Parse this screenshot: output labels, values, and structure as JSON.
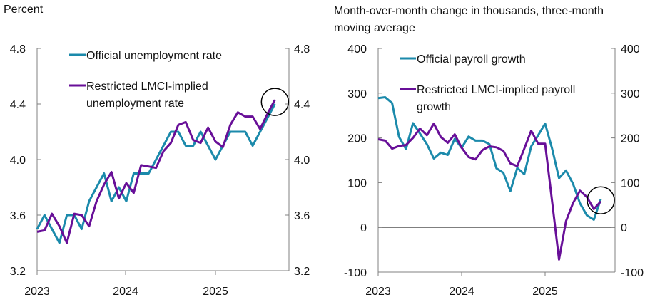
{
  "colors": {
    "official": "#1b8aab",
    "lmci": "#680f98",
    "axis": "#808080"
  },
  "chart_data": [
    {
      "type": "line",
      "ylabel": "Percent",
      "ylim": [
        3.2,
        4.8
      ],
      "yticks": [
        "3.2",
        "3.6",
        "4.0",
        "4.4",
        "4.8"
      ],
      "ytick_values": [
        3.2,
        3.6,
        4.0,
        4.4,
        4.8
      ],
      "xticks": [
        "2023",
        "2024",
        "2025"
      ],
      "x_start": "2023-01",
      "x_frequency": "monthly",
      "grid": false,
      "legend": "top",
      "highlight": "circle around latest point",
      "series": [
        {
          "name": "Official unemployment rate",
          "color_key": "official",
          "values": [
            3.5,
            3.6,
            3.5,
            3.4,
            3.6,
            3.6,
            3.5,
            3.7,
            3.8,
            3.9,
            3.7,
            3.8,
            3.7,
            3.9,
            3.9,
            3.9,
            4.0,
            4.1,
            4.2,
            4.2,
            4.1,
            4.1,
            4.2,
            4.1,
            4.0,
            4.1,
            4.2,
            4.2,
            4.2,
            4.1,
            4.2,
            4.3,
            4.4
          ]
        },
        {
          "name": "Restricted LMCI-implied unemployment rate",
          "color_key": "lmci",
          "values": [
            3.48,
            3.49,
            3.61,
            3.52,
            3.4,
            3.61,
            3.6,
            3.52,
            3.7,
            3.82,
            3.91,
            3.72,
            3.83,
            3.76,
            3.96,
            3.95,
            3.94,
            4.06,
            4.12,
            4.25,
            4.27,
            4.14,
            4.12,
            4.23,
            4.13,
            4.09,
            4.25,
            4.34,
            4.31,
            4.31,
            4.22,
            4.33,
            4.43
          ]
        }
      ]
    },
    {
      "type": "line",
      "ylabel": "Month-over-month change in thousands, three-month moving average",
      "ylabel_lines": [
        "Month-over-month change in thousands, three-month",
        "moving average"
      ],
      "ylim": [
        -100,
        400
      ],
      "yticks": [
        "-100",
        "0",
        "100",
        "200",
        "300",
        "400"
      ],
      "ytick_values": [
        -100,
        0,
        100,
        200,
        300,
        400
      ],
      "xticks": [
        "2023",
        "2024",
        "2025"
      ],
      "x_start": "2023-01",
      "x_frequency": "monthly",
      "grid": false,
      "zero_line": true,
      "legend": "top",
      "highlight": "circle around latest point",
      "series": [
        {
          "name": "Official payroll growth",
          "color_key": "official",
          "values": [
            289,
            291,
            278,
            202,
            175,
            233,
            210,
            186,
            154,
            167,
            162,
            198,
            178,
            203,
            194,
            194,
            186,
            132,
            122,
            81,
            133,
            119,
            181,
            206,
            232,
            176,
            110,
            127,
            98,
            54,
            27,
            17,
            63
          ]
        },
        {
          "name": "Restricted LMCI-implied payroll growth",
          "color_key": "lmci",
          "values": [
            197,
            194,
            176,
            182,
            184,
            200,
            221,
            206,
            232,
            202,
            189,
            208,
            178,
            157,
            152,
            173,
            181,
            179,
            171,
            143,
            137,
            176,
            216,
            187,
            187,
            58,
            -72,
            14,
            54,
            82,
            68,
            41,
            58
          ]
        }
      ]
    }
  ]
}
